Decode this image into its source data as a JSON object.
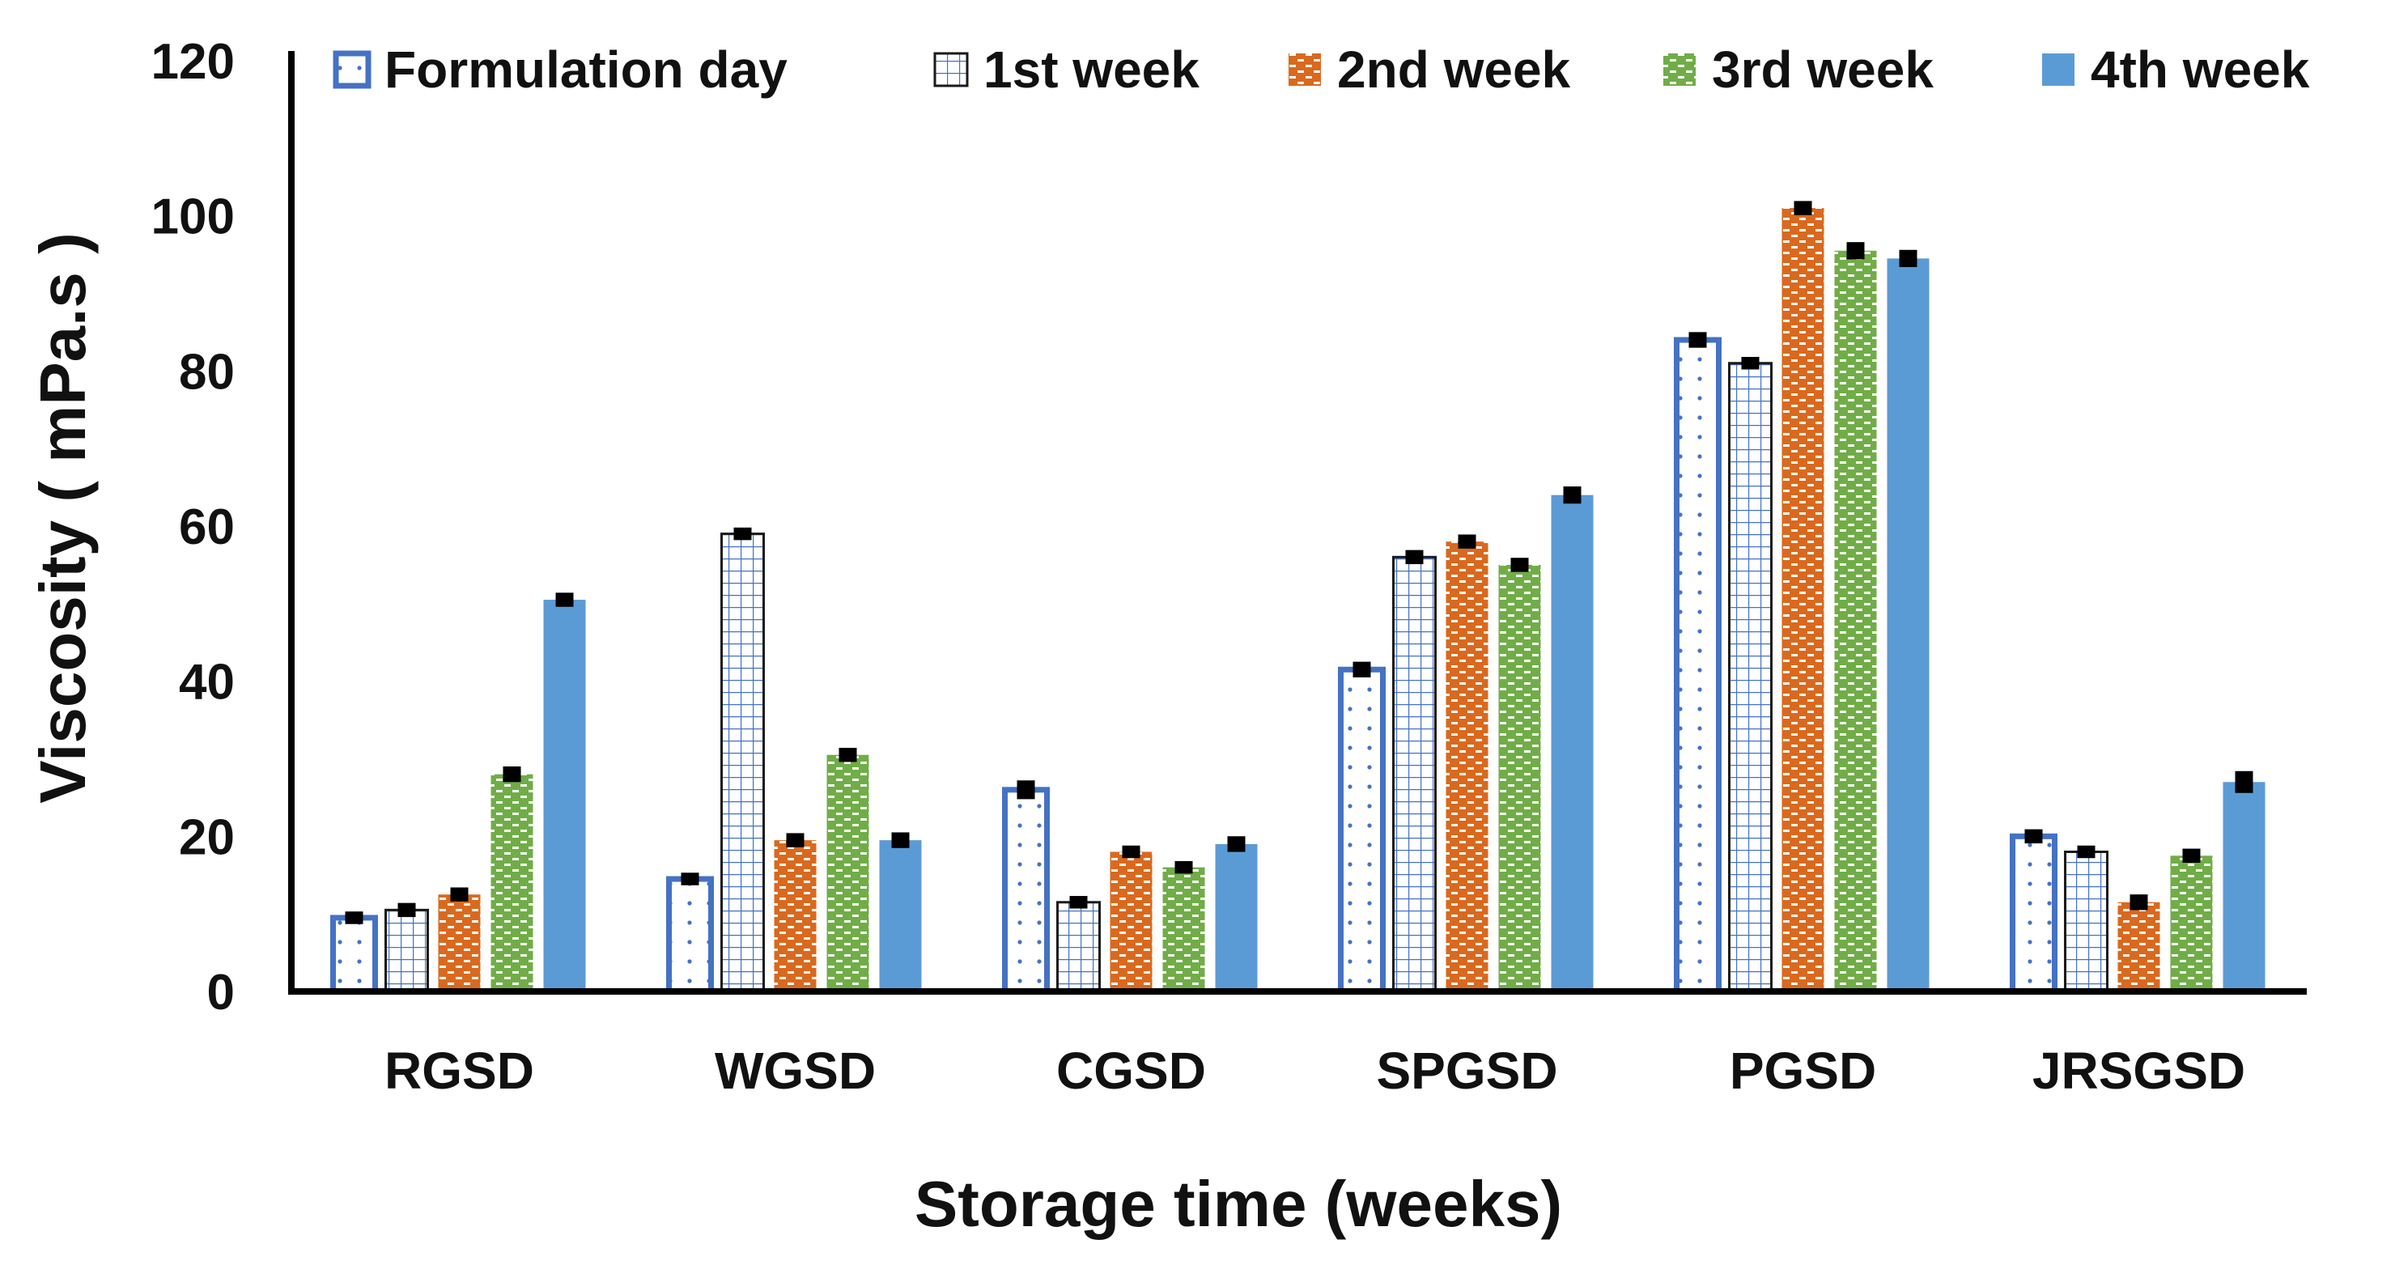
{
  "chart_data": {
    "type": "bar",
    "title": "",
    "xlabel": "Storage time (weeks)",
    "ylabel": "Viscosity ( mPa.s )",
    "ylim": [
      0,
      120
    ],
    "yticks": [
      0,
      20,
      40,
      60,
      80,
      100,
      120
    ],
    "grid": false,
    "legend_position": "top",
    "categories": [
      "RGSD",
      "WGSD",
      "CGSD",
      "SPGSD",
      "PGSD",
      "JRSGSD"
    ],
    "series": [
      {
        "name": "Formulation day",
        "pattern": "dots-outline",
        "color": "#4472C4",
        "values": [
          9.5,
          14.5,
          26,
          41.5,
          84,
          20
        ],
        "errors": [
          0.6,
          0.6,
          1.0,
          0.8,
          0.8,
          0.7
        ]
      },
      {
        "name": "1st week",
        "pattern": "grid",
        "color": "#4472C4",
        "values": [
          10.5,
          59,
          11.5,
          56,
          81,
          18
        ],
        "errors": [
          0.7,
          0.6,
          0.6,
          0.7,
          0.6,
          0.6
        ]
      },
      {
        "name": "2nd week",
        "pattern": "brick",
        "color": "#D9691E",
        "values": [
          12.5,
          19.5,
          18,
          58,
          101,
          11.5
        ],
        "errors": [
          0.7,
          0.7,
          0.6,
          0.7,
          0.7,
          0.8
        ]
      },
      {
        "name": "3rd week",
        "pattern": "brick",
        "color": "#70AD47",
        "values": [
          28,
          30.5,
          16,
          55,
          95.5,
          17.5
        ],
        "errors": [
          0.8,
          0.7,
          0.6,
          0.7,
          0.9,
          0.7
        ]
      },
      {
        "name": "4th week",
        "pattern": "solid",
        "color": "#5B9BD5",
        "values": [
          50.5,
          19.5,
          19,
          64,
          94.5,
          27
        ],
        "errors": [
          0.7,
          0.8,
          0.8,
          0.9,
          0.9,
          1.2
        ]
      }
    ]
  }
}
